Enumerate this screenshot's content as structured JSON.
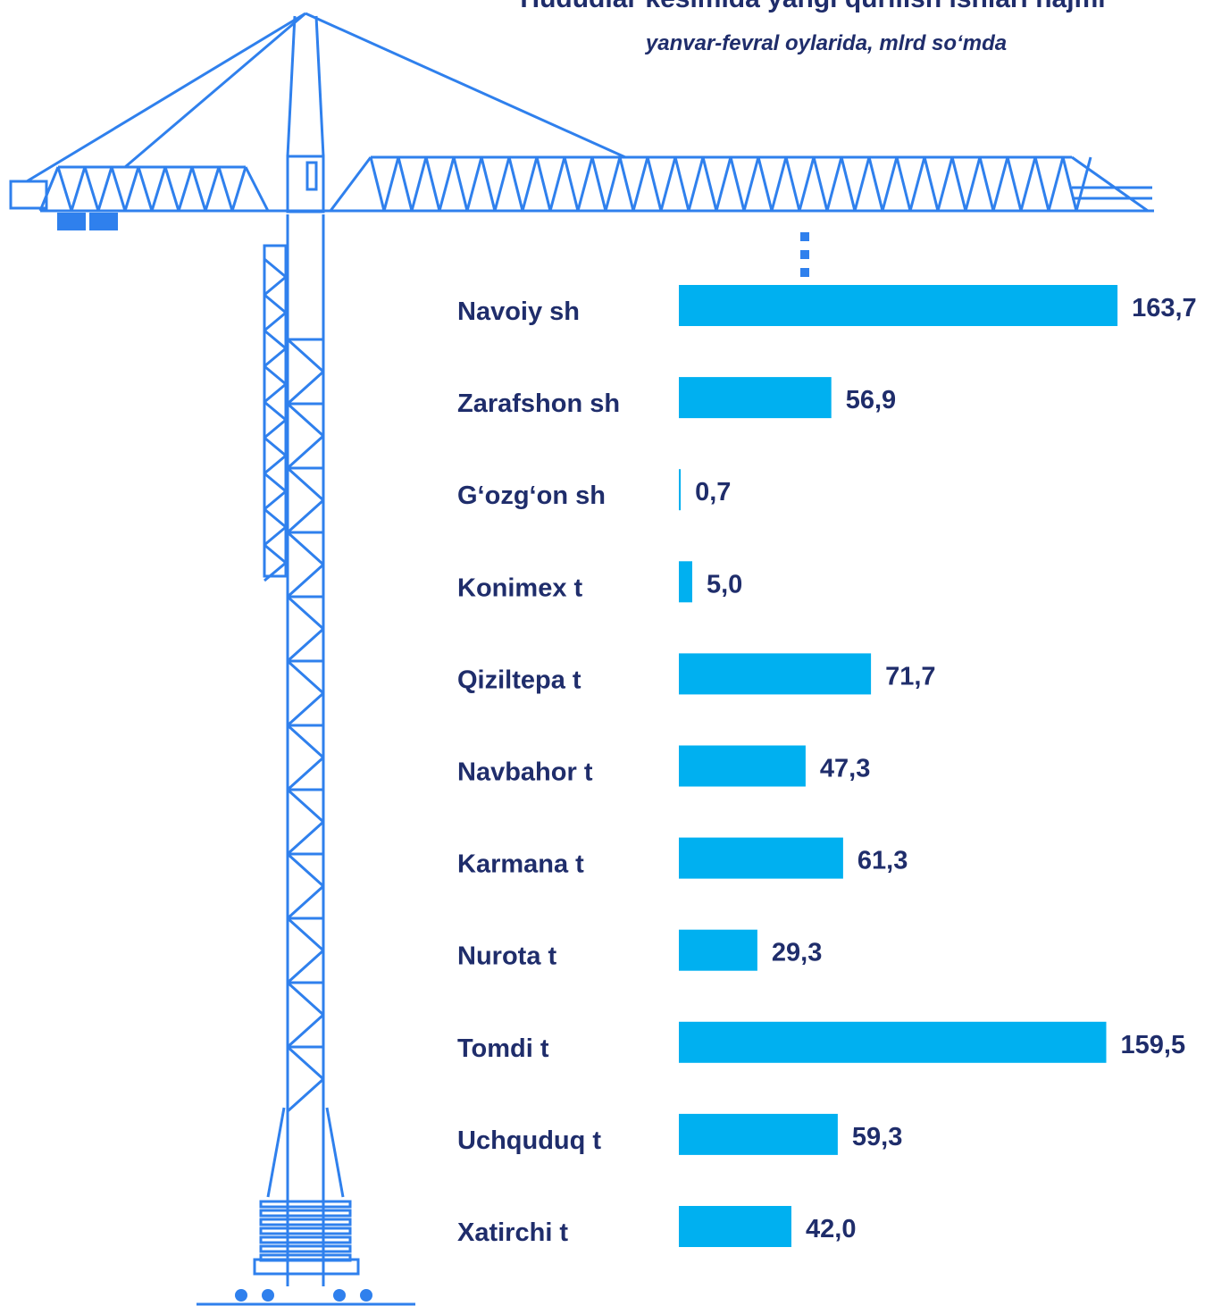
{
  "chart_data": {
    "type": "bar",
    "orientation": "horizontal",
    "title": "Hududlar kesimida yangi qurilish ishlari hajmi",
    "subtitle": "yanvar-fevral  oylarida, mlrd so‘mda",
    "categories": [
      "Navoiy sh",
      "Zarafshon sh",
      "G‘ozg‘on sh",
      "Konimex t",
      "Qiziltepa t",
      "Navbahor t",
      "Karmana t",
      "Nurota t",
      "Tomdi t",
      "Uchquduq t",
      "Xatirchi t"
    ],
    "values": [
      163.7,
      56.9,
      0.7,
      5.0,
      71.7,
      47.3,
      61.3,
      29.3,
      159.5,
      59.3,
      42.0
    ],
    "value_labels": [
      "163,7",
      "56,9",
      "0,7",
      "5,0",
      "71,7",
      "47,3",
      "61,3",
      "29,3",
      "159,5",
      "59,3",
      "42,0"
    ],
    "color": "#00b0f0"
  }
}
